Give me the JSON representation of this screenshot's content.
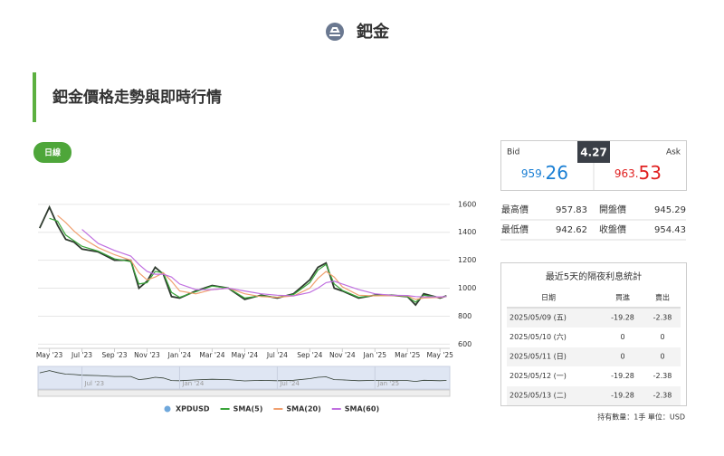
{
  "header": {
    "title": "鈀金"
  },
  "section": {
    "title": "鈀金價格走勢與即時行情",
    "tab": "日線"
  },
  "quote": {
    "bid_label": "Bid",
    "ask_label": "Ask",
    "spread": "4.27",
    "bid_int": "959.",
    "bid_dec": "26",
    "ask_int": "963.",
    "ask_dec": "53"
  },
  "stats": [
    [
      "最高價",
      957.83,
      "開盤價",
      945.29
    ],
    [
      "最低價",
      942.62,
      "收盤價",
      954.43
    ]
  ],
  "interest": {
    "title": "最近5天的隔夜利息統計",
    "headers": [
      "日期",
      "買進",
      "賣出"
    ],
    "rows": [
      [
        "2025/05/09 (五)",
        -19.28,
        -2.38
      ],
      [
        "2025/05/10 (六)",
        0,
        0
      ],
      [
        "2025/05/11 (日)",
        0,
        0
      ],
      [
        "2025/05/12 (一)",
        -19.28,
        -2.38
      ],
      [
        "2025/05/13 (二)",
        -19.28,
        -2.38
      ]
    ]
  },
  "note": "持有數量：1手 單位：USD",
  "chart_data": {
    "type": "line",
    "x": [
      -0.6,
      0,
      0.5,
      1,
      1.5,
      2,
      3,
      4,
      5,
      5.5,
      6,
      6.5,
      7,
      7.5,
      8,
      9,
      10,
      11,
      12,
      13,
      14,
      15,
      16,
      16.5,
      17,
      17.5,
      18,
      19,
      20,
      21,
      22,
      22.5,
      23,
      24,
      24.4
    ],
    "series": [
      {
        "name": "XPDUSD",
        "color": "#2f3b2f",
        "values": [
          1430,
          1580,
          1450,
          1350,
          1330,
          1280,
          1260,
          1200,
          1200,
          1000,
          1050,
          1150,
          1100,
          940,
          930,
          980,
          1020,
          1000,
          920,
          950,
          930,
          960,
          1060,
          1150,
          1180,
          1000,
          980,
          930,
          950,
          950,
          940,
          880,
          960,
          930,
          945
        ]
      },
      {
        "name": "SMA(5)",
        "color": "#3aa53a",
        "values": [
          null,
          1500,
          1480,
          1380,
          1340,
          1300,
          1265,
          1210,
          1190,
          1030,
          1040,
          1120,
          1110,
          970,
          935,
          975,
          1015,
          1000,
          930,
          945,
          935,
          955,
          1040,
          1130,
          1170,
          1030,
          985,
          935,
          948,
          950,
          940,
          900,
          950,
          935,
          942
        ]
      },
      {
        "name": "SMA(20)",
        "color": "#f0a070",
        "values": [
          null,
          null,
          1520,
          1470,
          1410,
          1360,
          1290,
          1240,
          1200,
          1110,
          1060,
          1080,
          1110,
          1050,
          980,
          960,
          990,
          1000,
          960,
          940,
          935,
          945,
          1000,
          1070,
          1120,
          1080,
          1010,
          950,
          945,
          948,
          945,
          920,
          930,
          935,
          940
        ]
      },
      {
        "name": "SMA(60)",
        "color": "#c070e0",
        "values": [
          null,
          null,
          null,
          null,
          null,
          1420,
          1320,
          1270,
          1230,
          1170,
          1120,
          1100,
          1100,
          1080,
          1030,
          990,
          990,
          1000,
          980,
          960,
          950,
          945,
          970,
          1000,
          1040,
          1050,
          1030,
          990,
          960,
          950,
          948,
          940,
          938,
          938,
          940
        ]
      }
    ],
    "xlim": [
      -0.7,
      24.6
    ],
    "xticks": [
      {
        "value": 0,
        "label": "May '23"
      },
      {
        "value": 2,
        "label": "Jul '23"
      },
      {
        "value": 4,
        "label": "Sep '23"
      },
      {
        "value": 6,
        "label": "Nov '23"
      },
      {
        "value": 8,
        "label": "Jan '24"
      },
      {
        "value": 10,
        "label": "Mar '24"
      },
      {
        "value": 12,
        "label": "May '24"
      },
      {
        "value": 14,
        "label": "Jul '24"
      },
      {
        "value": 16,
        "label": "Sep '24"
      },
      {
        "value": 18,
        "label": "Nov '24"
      },
      {
        "value": 20,
        "label": "Jan '25"
      },
      {
        "value": 22,
        "label": "Mar '25"
      },
      {
        "value": 24,
        "label": "May '25"
      }
    ],
    "navigator_ticks": [
      {
        "value": 2,
        "label": "Jul '23"
      },
      {
        "value": 8,
        "label": "Jan '24"
      },
      {
        "value": 14,
        "label": "Jul '24"
      },
      {
        "value": 20,
        "label": "Jan '25"
      }
    ],
    "ylim": [
      570,
      1670
    ],
    "yticks": [
      600,
      800,
      1000,
      1200,
      1400,
      1600
    ],
    "grid": true
  }
}
